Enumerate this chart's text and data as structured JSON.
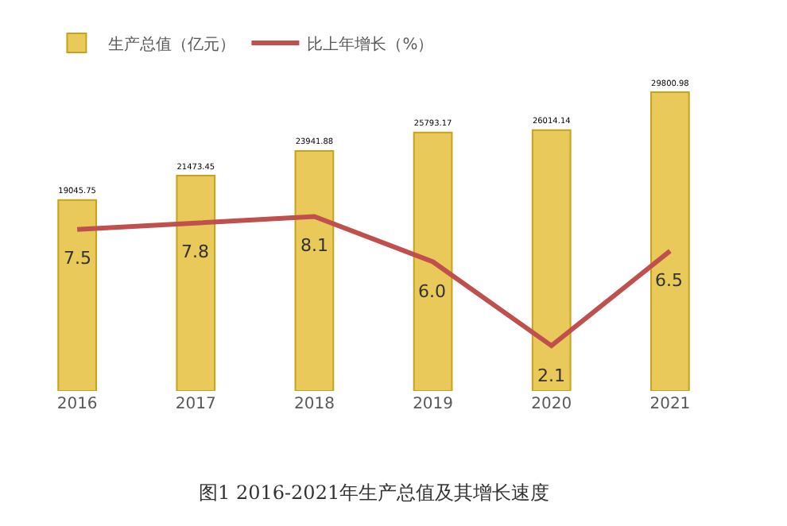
{
  "chart_data": {
    "type": "bar",
    "title": "图1 2016-2021年生产总值及其增长速度",
    "categories": [
      "2016",
      "2017",
      "2018",
      "2019",
      "2020",
      "2021"
    ],
    "series": [
      {
        "name": "生产总值（亿元）",
        "color": "#e8c95a",
        "values": [
          19045.75,
          21473.45,
          23941.88,
          25793.17,
          26014.14,
          29800.98
        ]
      },
      {
        "name": "比上年增长（%）",
        "type": "line",
        "axis": "y2",
        "color": "#c0504d",
        "values": [
          7.5,
          7.8,
          8.1,
          6.0,
          2.1,
          6.5
        ],
        "value_labels": [
          "7.5",
          "7.8",
          "8.1",
          "6.0",
          "2.1",
          "6.5"
        ]
      }
    ],
    "data_labels": true,
    "legend": "top left",
    "tick_labels": "x",
    "marker": "none"
  }
}
